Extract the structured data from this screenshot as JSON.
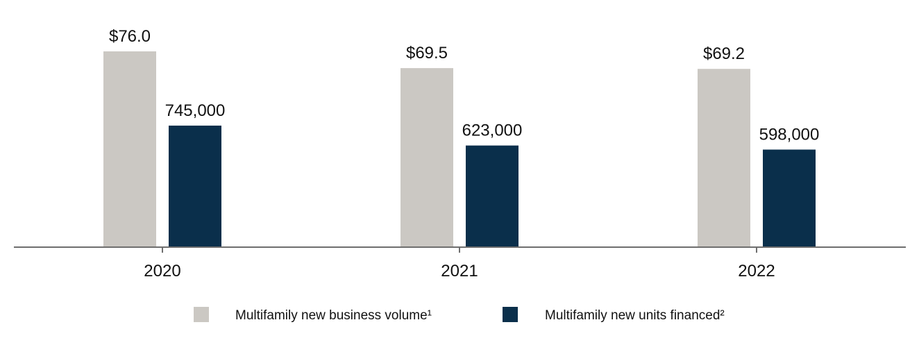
{
  "chart_data": {
    "type": "bar",
    "categories": [
      "2020",
      "2021",
      "2022"
    ],
    "series": [
      {
        "name": "Multifamily new business volume¹",
        "color": "#cbc8c3",
        "values": [
          76.0,
          69.5,
          69.2
        ],
        "labels": [
          "$76.0",
          "$69.5",
          "$69.2"
        ],
        "max": 76.0
      },
      {
        "name": "Multifamily new units financed²",
        "color": "#0a2f4b",
        "values": [
          745000,
          623000,
          598000
        ],
        "labels": [
          "745,000",
          "623,000",
          "598,000"
        ],
        "max": 1200000
      }
    ],
    "title": "",
    "xlabel": "",
    "ylabel": "",
    "grid": false,
    "legend": "bottom-center",
    "axis_color": "#6e6e6e"
  }
}
